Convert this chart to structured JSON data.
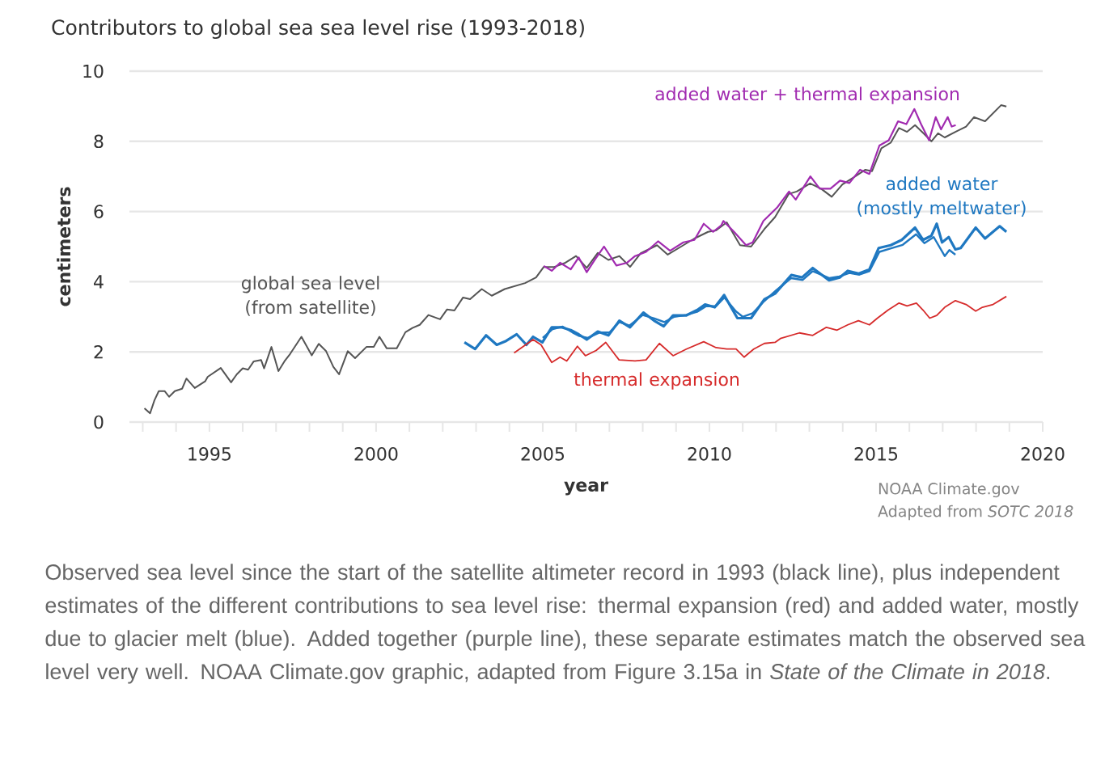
{
  "chart_data": {
    "type": "line",
    "title": "Contributors to global sea sea level rise (1993-2018)",
    "xlabel": "year",
    "ylabel": "centimeters",
    "xlim": [
      1992.6,
      2020
    ],
    "ylim": [
      0,
      10
    ],
    "xticks": [
      {
        "value": 1993,
        "label": null
      },
      {
        "value": 1994,
        "label": null
      },
      1995,
      {
        "value": 1996,
        "label": null
      },
      {
        "value": 1997,
        "label": null
      },
      {
        "value": 1998,
        "label": null
      },
      {
        "value": 1999,
        "label": null
      },
      2000,
      {
        "value": 2001,
        "label": null
      },
      {
        "value": 2002,
        "label": null
      },
      {
        "value": 2003,
        "label": null
      },
      {
        "value": 2004,
        "label": null
      },
      2005,
      {
        "value": 2006,
        "label": null
      },
      {
        "value": 2007,
        "label": null
      },
      {
        "value": 2008,
        "label": null
      },
      {
        "value": 2009,
        "label": null
      },
      2010,
      {
        "value": 2011,
        "label": null
      },
      {
        "value": 2012,
        "label": null
      },
      {
        "value": 2013,
        "label": null
      },
      {
        "value": 2014,
        "label": null
      },
      2015,
      {
        "value": 2016,
        "label": null
      },
      {
        "value": 2017,
        "label": null
      },
      {
        "value": 2018,
        "label": null
      },
      {
        "value": 2019,
        "label": null
      },
      2020
    ],
    "yticks": [
      0,
      2,
      4,
      6,
      8,
      10
    ],
    "grid": "y",
    "line_style": "solid",
    "series": [
      {
        "name": "global sea level (from satellite)",
        "color": "#555555",
        "x": [
          1993.05,
          1993.22,
          1993.35,
          1993.48,
          1993.66,
          1993.79,
          1993.96,
          1994.18,
          1994.31,
          1994.56,
          1994.87,
          1994.95,
          1995.34,
          1995.65,
          1995.82,
          1996.0,
          1996.16,
          1996.33,
          1996.55,
          1996.64,
          1996.86,
          1997.07,
          1997.25,
          1997.42,
          1997.76,
          1998.07,
          1998.28,
          1998.5,
          1998.72,
          1998.89,
          1999.15,
          1999.37,
          1999.71,
          1999.93,
          2000.1,
          2000.32,
          2000.62,
          2000.88,
          2001.09,
          2001.31,
          2001.57,
          2001.92,
          2002.13,
          2002.35,
          2002.61,
          2002.82,
          2003.17,
          2003.47,
          2003.86,
          2004.47,
          2004.8,
          2005.03,
          2005.35,
          2005.68,
          2006.0,
          2006.32,
          2006.65,
          2006.97,
          2007.3,
          2007.62,
          2007.94,
          2008.43,
          2008.75,
          2009.15,
          2009.55,
          2009.96,
          2010.2,
          2010.52,
          2010.92,
          2011.25,
          2011.65,
          2011.97,
          2012.38,
          2012.62,
          2013.02,
          2013.35,
          2013.67,
          2013.99,
          2014.31,
          2014.68,
          2014.88,
          2015.16,
          2015.44,
          2015.69,
          2015.93,
          2016.17,
          2016.42,
          2016.66,
          2016.86,
          2017.06,
          2017.38,
          2017.7,
          2017.94,
          2018.27,
          2018.51,
          2018.75,
          2018.91
        ],
        "values": [
          0.39,
          0.25,
          0.62,
          0.88,
          0.88,
          0.72,
          0.88,
          0.95,
          1.24,
          0.97,
          1.16,
          1.29,
          1.54,
          1.13,
          1.36,
          1.53,
          1.49,
          1.73,
          1.77,
          1.53,
          2.14,
          1.45,
          1.73,
          1.94,
          2.43,
          1.9,
          2.23,
          2.02,
          1.57,
          1.36,
          2.02,
          1.82,
          2.14,
          2.14,
          2.43,
          2.1,
          2.1,
          2.56,
          2.68,
          2.77,
          3.05,
          2.93,
          3.21,
          3.18,
          3.55,
          3.5,
          3.79,
          3.6,
          3.79,
          3.96,
          4.12,
          4.42,
          4.42,
          4.54,
          4.73,
          4.39,
          4.82,
          4.62,
          4.73,
          4.42,
          4.81,
          5.04,
          4.77,
          5.0,
          5.23,
          5.42,
          5.46,
          5.69,
          5.04,
          5.0,
          5.5,
          5.84,
          6.5,
          6.57,
          6.8,
          6.65,
          6.42,
          6.77,
          6.96,
          7.19,
          7.15,
          7.8,
          7.96,
          8.38,
          8.27,
          8.46,
          8.23,
          8.0,
          8.23,
          8.11,
          8.27,
          8.42,
          8.69,
          8.57,
          8.8,
          9.03,
          8.99
        ]
      },
      {
        "name": "added water + thermal expansion",
        "color": "#a12bb0",
        "x": [
          2005.03,
          2005.27,
          2005.52,
          2005.84,
          2006.08,
          2006.32,
          2006.56,
          2006.84,
          2007.21,
          2007.53,
          2007.77,
          2008.1,
          2008.46,
          2008.82,
          2009.22,
          2009.55,
          2009.83,
          2010.11,
          2010.36,
          2010.42,
          2010.74,
          2011.1,
          2011.3,
          2011.62,
          2012.03,
          2012.39,
          2012.59,
          2013.03,
          2013.31,
          2013.63,
          2013.92,
          2014.2,
          2014.52,
          2014.8,
          2015.1,
          2015.38,
          2015.66,
          2015.91,
          2016.15,
          2016.35,
          2016.59,
          2016.79,
          2016.95,
          2017.15,
          2017.27,
          2017.39
        ],
        "values": [
          4.45,
          4.31,
          4.54,
          4.35,
          4.69,
          4.27,
          4.62,
          5.0,
          4.46,
          4.54,
          4.73,
          4.85,
          5.15,
          4.88,
          5.12,
          5.19,
          5.65,
          5.42,
          5.61,
          5.73,
          5.42,
          5.04,
          5.12,
          5.73,
          6.11,
          6.57,
          6.34,
          7.0,
          6.65,
          6.65,
          6.88,
          6.81,
          7.19,
          7.07,
          7.88,
          8.03,
          8.57,
          8.49,
          8.92,
          8.49,
          8.03,
          8.69,
          8.34,
          8.69,
          8.42,
          8.46
        ]
      },
      {
        "name": "added water (mostly meltwater)",
        "color": "#1f78c1",
        "x": [
          2002.65,
          2002.97,
          2003.3,
          2003.62,
          2003.9,
          2004.22,
          2004.51,
          2004.71,
          2004.99,
          2005.27,
          2005.56,
          2005.84,
          2006.08,
          2006.32,
          2006.65,
          2006.97,
          2007.3,
          2007.62,
          2008.02,
          2008.34,
          2008.63,
          2008.91,
          2009.31,
          2009.63,
          2009.87,
          2010.16,
          2010.44,
          2010.84,
          2011.25,
          2011.65,
          2011.97,
          2012.46,
          2012.78,
          2013.1,
          2013.59,
          2013.91,
          2014.15,
          2014.47,
          2014.8,
          2015.08,
          2015.44,
          2015.77,
          2016.17,
          2016.41,
          2016.66,
          2016.82,
          2016.98,
          2017.18,
          2017.38,
          2017.54,
          2017.99,
          2018.27,
          2018.71,
          2018.91
        ],
        "values": [
          2.27,
          2.08,
          2.47,
          2.2,
          2.31,
          2.5,
          2.2,
          2.43,
          2.27,
          2.7,
          2.7,
          2.62,
          2.5,
          2.35,
          2.58,
          2.47,
          2.89,
          2.7,
          3.12,
          2.89,
          2.73,
          3.04,
          3.04,
          3.19,
          3.35,
          3.27,
          3.62,
          2.96,
          2.96,
          3.5,
          3.66,
          4.19,
          4.12,
          4.39,
          4.04,
          4.12,
          4.31,
          4.23,
          4.35,
          4.96,
          5.04,
          5.19,
          5.54,
          5.19,
          5.31,
          5.65,
          5.12,
          5.27,
          4.92,
          4.96,
          5.54,
          5.23,
          5.58,
          5.42
        ]
      },
      {
        "color": "#1f78c1",
        "x": [
          2005.0,
          2005.3,
          2005.6,
          2005.9,
          2006.1,
          2006.35,
          2006.7,
          2007.0,
          2007.3,
          2007.6,
          2008.0,
          2008.35,
          2008.65,
          2008.95,
          2009.3,
          2009.65,
          2009.9,
          2010.2,
          2010.45,
          2010.8,
          2011.0,
          2011.3,
          2011.65,
          2012.0,
          2012.45,
          2012.8,
          2013.1,
          2013.6,
          2013.9,
          2014.2,
          2014.5,
          2014.8,
          2015.1,
          2015.45,
          2015.8,
          2016.2,
          2016.45,
          2016.73,
          2017.06,
          2017.2,
          2017.38
        ],
        "values": [
          2.4,
          2.65,
          2.72,
          2.55,
          2.45,
          2.4,
          2.55,
          2.55,
          2.85,
          2.75,
          3.05,
          2.95,
          2.85,
          3.0,
          3.05,
          3.15,
          3.3,
          3.3,
          3.55,
          3.15,
          3.0,
          3.1,
          3.45,
          3.75,
          4.1,
          4.05,
          4.3,
          4.1,
          4.15,
          4.25,
          4.2,
          4.3,
          4.85,
          4.95,
          5.05,
          5.35,
          5.1,
          5.27,
          4.73,
          4.9,
          4.77
        ]
      },
      {
        "name": "thermal expansion",
        "color": "#d62b2b",
        "x": [
          2004.14,
          2004.71,
          2004.95,
          2005.27,
          2005.52,
          2005.72,
          2006.04,
          2006.28,
          2006.6,
          2006.89,
          2007.29,
          2007.77,
          2008.1,
          2008.5,
          2008.91,
          2009.31,
          2009.83,
          2010.2,
          2010.52,
          2010.8,
          2011.04,
          2011.33,
          2011.65,
          2011.97,
          2012.13,
          2012.7,
          2013.1,
          2013.51,
          2013.83,
          2014.15,
          2014.47,
          2014.8,
          2015.04,
          2015.36,
          2015.69,
          2015.93,
          2016.21,
          2016.41,
          2016.61,
          2016.82,
          2017.06,
          2017.38,
          2017.7,
          2017.99,
          2018.19,
          2018.51,
          2018.91
        ],
        "values": [
          1.97,
          2.35,
          2.2,
          1.7,
          1.85,
          1.74,
          2.16,
          1.89,
          2.04,
          2.27,
          1.77,
          1.74,
          1.77,
          2.24,
          1.89,
          2.08,
          2.29,
          2.12,
          2.08,
          2.08,
          1.85,
          2.08,
          2.24,
          2.27,
          2.38,
          2.54,
          2.47,
          2.7,
          2.62,
          2.77,
          2.89,
          2.77,
          2.96,
          3.19,
          3.39,
          3.31,
          3.39,
          3.19,
          2.96,
          3.04,
          3.27,
          3.46,
          3.35,
          3.16,
          3.27,
          3.35,
          3.58
        ]
      }
    ],
    "annotations": [
      "NOAA Climate.gov",
      "Adapted from *SOTC 2018*",
      "Observed sea level since the start of the satellite altimeter record in 1993 (black line), plus independent estimates of the different contributions to sea level rise: thermal expansion (red) and added water, mostly due to glacier melt (blue). Added together (purple line), these separate estimates match the observed sea level very well. NOAA Climate.gov graphic, adapted from Figure 3.15a in *State of the Climate in 2018*."
    ]
  }
}
